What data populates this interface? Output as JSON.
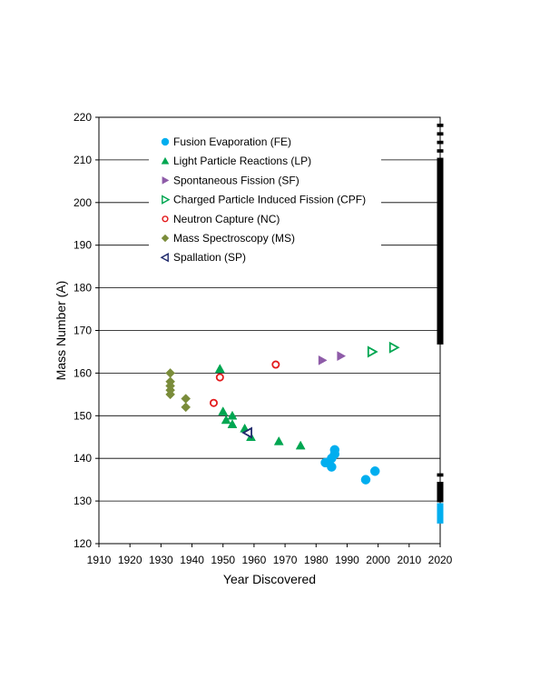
{
  "chart_data": {
    "type": "scatter",
    "title": "",
    "xlabel": "Year Discovered",
    "ylabel": "Mass Number (A)",
    "xlim": [
      1910,
      2020
    ],
    "ylim": [
      120,
      220
    ],
    "xticks": [
      1910,
      1920,
      1930,
      1940,
      1950,
      1960,
      1970,
      1980,
      1990,
      2000,
      2010,
      2020
    ],
    "yticks": [
      120,
      130,
      140,
      150,
      160,
      170,
      180,
      190,
      200,
      210,
      220
    ],
    "grid": "horizontal",
    "legend_position": "top-left",
    "series": [
      {
        "name": "Fusion Evaporation (FE)",
        "marker": "circle",
        "filled": true,
        "color": "#00AEEF",
        "points": [
          [
            1983,
            139
          ],
          [
            1984,
            139
          ],
          [
            1985,
            138
          ],
          [
            1985,
            140
          ],
          [
            1986,
            141
          ],
          [
            1986,
            142
          ],
          [
            1996,
            135
          ],
          [
            1999,
            137
          ]
        ]
      },
      {
        "name": "Light Particle Reactions (LP)",
        "marker": "triangle-up",
        "filled": true,
        "color": "#00A651",
        "points": [
          [
            1949,
            161
          ],
          [
            1950,
            151
          ],
          [
            1951,
            149
          ],
          [
            1953,
            148
          ],
          [
            1953,
            150
          ],
          [
            1957,
            147
          ],
          [
            1959,
            145
          ],
          [
            1968,
            144
          ],
          [
            1975,
            143
          ]
        ]
      },
      {
        "name": "Spontaneous Fission (SF)",
        "marker": "triangle-right",
        "filled": true,
        "color": "#8E5BA8",
        "points": [
          [
            1982,
            163
          ],
          [
            1988,
            164
          ]
        ]
      },
      {
        "name": "Charged Particle Induced Fission (CPF)",
        "marker": "triangle-right",
        "filled": false,
        "color": "#00A651",
        "points": [
          [
            1998,
            165
          ],
          [
            2005,
            166
          ]
        ]
      },
      {
        "name": "Neutron Capture (NC)",
        "marker": "circle",
        "filled": false,
        "color": "#E31A1C",
        "points": [
          [
            1947,
            153
          ],
          [
            1949,
            159
          ],
          [
            1967,
            162
          ]
        ]
      },
      {
        "name": "Mass Spectroscopy (MS)",
        "marker": "diamond",
        "filled": true,
        "color": "#7A8C3A",
        "points": [
          [
            1933,
            155
          ],
          [
            1933,
            156
          ],
          [
            1933,
            157
          ],
          [
            1933,
            158
          ],
          [
            1933,
            160
          ],
          [
            1938,
            152
          ],
          [
            1938,
            154
          ]
        ]
      },
      {
        "name": "Spallation (SP)",
        "marker": "triangle-left",
        "filled": false,
        "color": "#1F2A6B",
        "points": [
          [
            1958,
            146
          ]
        ]
      }
    ],
    "right_bar": {
      "x": 2020,
      "black_segments": [
        [
          218,
          218
        ],
        [
          216,
          216
        ],
        [
          214,
          214
        ],
        [
          212,
          212
        ],
        [
          167,
          210
        ],
        [
          136,
          136
        ],
        [
          130,
          134
        ]
      ],
      "blue_segments": [
        [
          125,
          129
        ]
      ],
      "black_color": "#000000",
      "blue_color": "#00AEEF"
    }
  }
}
